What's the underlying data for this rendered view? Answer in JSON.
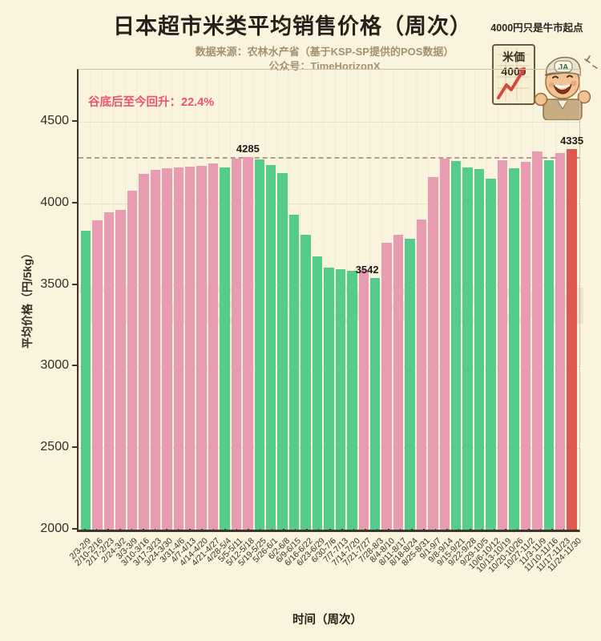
{
  "header": {
    "title": "日本超市米类平均销售价格（周次）",
    "source_line": "数据来源：农林水产省（基于KSP-SP提供的POS数据）",
    "account_line": "公众号：TimeHorizonX"
  },
  "badge": {
    "caption": "4000円只是牛市起点",
    "sign_line1": "米価",
    "sign_line2": "4000",
    "cap_text": "JA"
  },
  "annotation": {
    "recovery_text": "谷底后至今回升：22.4%"
  },
  "watermark": "TIME HORIZON",
  "colors": {
    "up": "#e89cb2",
    "down": "#55cb8c",
    "last": "#dd5a52",
    "background": "#faf3dd",
    "annotation": "#ef5368",
    "refline": "#aba08c"
  },
  "axes": {
    "y_title": "平均价格（円/5kg）",
    "x_title": "时间（周次）",
    "y_ticks": [
      2000,
      2500,
      3000,
      3500,
      4000,
      4500
    ]
  },
  "chart_data": {
    "type": "bar",
    "title": "日本超市米类平均销售价格（周次）",
    "xlabel": "时间（周次）",
    "ylabel": "平均价格（円/5kg）",
    "y_min": 2000,
    "y_scale_max": 4820,
    "ylim": [
      2000,
      4500
    ],
    "grid": "faint dotted horizontal + faint vertical",
    "legend": "none (color = week-over-week: pink=up, green=down, red=latest)",
    "reference_line_value": 4285,
    "categories": [
      "2/3-2/9",
      "2/10-2/16",
      "2/17-2/23",
      "2/24-3/2",
      "3/3-3/9",
      "3/10-3/16",
      "3/17-3/23",
      "3/24-3/30",
      "3/31-4/6",
      "4/7-4/13",
      "4/14-4/20",
      "4/21-4/27",
      "4/28-5/4",
      "5/5-5/11",
      "5/12-5/18",
      "5/19-5/25",
      "5/26-6/1",
      "6/2-6/8",
      "6/9-6/15",
      "6/16-6/22",
      "6/23-6/29",
      "6/30-7/6",
      "7/7-7/13",
      "7/14-7/20",
      "7/21-7/27",
      "7/28-8/3",
      "8/4-8/10",
      "8/11-8/17",
      "8/18-8/24",
      "8/25-8/31",
      "9/1-9/7",
      "9/8-9/14",
      "9/15-9/21",
      "9/22-9/28",
      "9/29-10/5",
      "10/6-10/12",
      "10/13-10/19",
      "10/20-10/26",
      "10/27-11/2",
      "11/3-11/9",
      "11/10-11/16",
      "11/17-11/23",
      "11/24-11/30"
    ],
    "series": [
      {
        "name": "周平均价格（円/5kg）",
        "values": [
          3832,
          3896,
          3946,
          3959,
          4080,
          4179,
          4206,
          4215,
          4222,
          4226,
          4230,
          4245,
          4220,
          4274,
          4285,
          4270,
          4233,
          4187,
          3929,
          3810,
          3675,
          3609,
          3596,
          3585,
          3591,
          3542,
          3757,
          3810,
          3785,
          3900,
          4164,
          4275,
          4258,
          4220,
          4213,
          4150,
          4263,
          4217,
          4255,
          4317,
          4266,
          4307,
          4335
        ]
      }
    ],
    "bar_directions": [
      "down",
      "up",
      "up",
      "up",
      "up",
      "up",
      "up",
      "up",
      "up",
      "up",
      "up",
      "up",
      "down",
      "up",
      "up",
      "down",
      "down",
      "down",
      "down",
      "down",
      "down",
      "down",
      "down",
      "down",
      "up",
      "down",
      "up",
      "up",
      "down",
      "up",
      "up",
      "up",
      "down",
      "down",
      "down",
      "down",
      "up",
      "down",
      "up",
      "up",
      "down",
      "up",
      "last"
    ],
    "labeled_points": [
      {
        "index": 14,
        "text": "4285",
        "dx": 0
      },
      {
        "index": 25,
        "text": "3542",
        "dx": -10
      },
      {
        "index": 42,
        "text": "4335",
        "dx": 0
      }
    ]
  }
}
